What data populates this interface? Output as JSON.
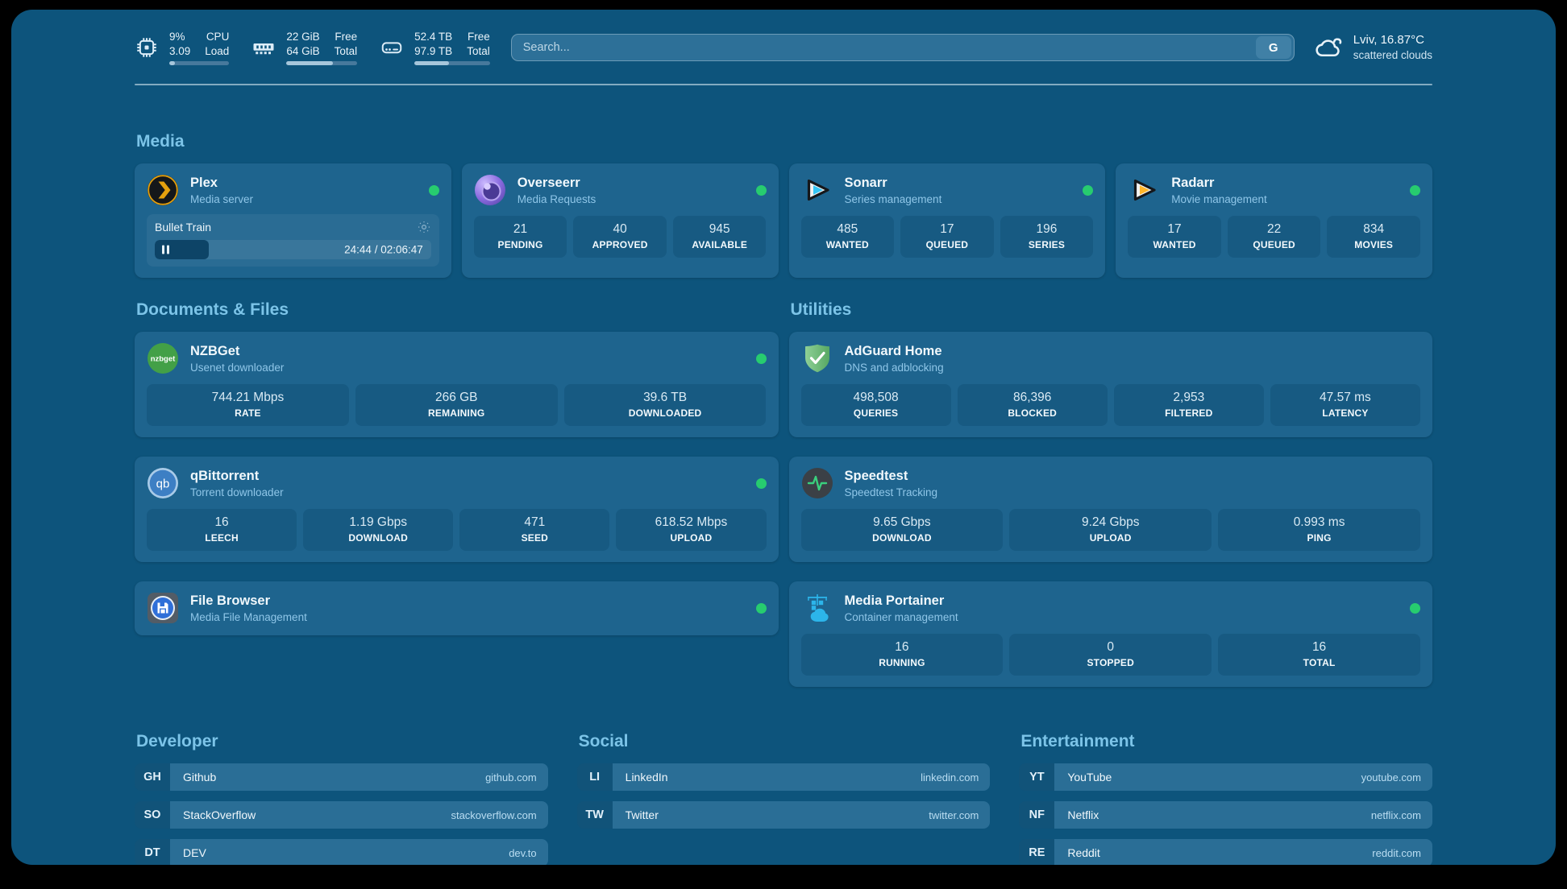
{
  "colors": {
    "background": "#0d547c",
    "card": "#1e648e",
    "accent": "#7cc4e8",
    "status_online": "#27cc6f"
  },
  "header": {
    "system_stats": [
      {
        "name": "cpu",
        "icon": "cpu-icon",
        "values": [
          "9%",
          "3.09"
        ],
        "labels": [
          "CPU",
          "Load"
        ],
        "progress_pct": 9
      },
      {
        "name": "memory",
        "icon": "memory-icon",
        "values": [
          "22 GiB",
          "64 GiB"
        ],
        "labels": [
          "Free",
          "Total"
        ],
        "progress_pct": 66
      },
      {
        "name": "disk",
        "icon": "disk-icon",
        "values": [
          "52.4 TB",
          "97.9 TB"
        ],
        "labels": [
          "Free",
          "Total"
        ],
        "progress_pct": 46
      }
    ],
    "search": {
      "placeholder": "Search...",
      "engine_button": "G"
    },
    "weather": {
      "summary": "Lviv, 16.87°C",
      "condition": "scattered clouds"
    }
  },
  "sections": {
    "media": {
      "title": "Media",
      "apps": [
        {
          "name": "Plex",
          "subtitle": "Media server",
          "icon": "plex",
          "online": true,
          "now_playing": {
            "title": "Bullet Train",
            "time": "24:44 / 02:06:47",
            "progress_pct": 19.5
          }
        },
        {
          "name": "Overseerr",
          "subtitle": "Media Requests",
          "icon": "overseerr",
          "online": true,
          "stats": [
            {
              "value": "21",
              "label": "PENDING"
            },
            {
              "value": "40",
              "label": "APPROVED"
            },
            {
              "value": "945",
              "label": "AVAILABLE"
            }
          ]
        },
        {
          "name": "Sonarr",
          "subtitle": "Series management",
          "icon": "sonarr",
          "online": true,
          "stats": [
            {
              "value": "485",
              "label": "WANTED"
            },
            {
              "value": "17",
              "label": "QUEUED"
            },
            {
              "value": "196",
              "label": "SERIES"
            }
          ]
        },
        {
          "name": "Radarr",
          "subtitle": "Movie management",
          "icon": "radarr",
          "online": true,
          "stats": [
            {
              "value": "17",
              "label": "WANTED"
            },
            {
              "value": "22",
              "label": "QUEUED"
            },
            {
              "value": "834",
              "label": "MOVIES"
            }
          ]
        }
      ]
    },
    "documents": {
      "title": "Documents & Files",
      "apps": [
        {
          "name": "NZBGet",
          "subtitle": "Usenet downloader",
          "icon": "nzbget",
          "online": true,
          "stats": [
            {
              "value": "744.21 Mbps",
              "label": "RATE"
            },
            {
              "value": "266 GB",
              "label": "REMAINING"
            },
            {
              "value": "39.6 TB",
              "label": "DOWNLOADED"
            }
          ]
        },
        {
          "name": "qBittorrent",
          "subtitle": "Torrent downloader",
          "icon": "qbittorrent",
          "online": true,
          "stats": [
            {
              "value": "16",
              "label": "LEECH"
            },
            {
              "value": "1.19 Gbps",
              "label": "DOWNLOAD"
            },
            {
              "value": "471",
              "label": "SEED"
            },
            {
              "value": "618.52 Mbps",
              "label": "UPLOAD"
            }
          ]
        },
        {
          "name": "File Browser",
          "subtitle": "Media File Management",
          "icon": "filebrowser",
          "online": true
        }
      ]
    },
    "utilities": {
      "title": "Utilities",
      "apps": [
        {
          "name": "AdGuard Home",
          "subtitle": "DNS and adblocking",
          "icon": "adguard",
          "online": false,
          "stats": [
            {
              "value": "498,508",
              "label": "QUERIES"
            },
            {
              "value": "86,396",
              "label": "BLOCKED"
            },
            {
              "value": "2,953",
              "label": "FILTERED"
            },
            {
              "value": "47.57 ms",
              "label": "LATENCY"
            }
          ]
        },
        {
          "name": "Speedtest",
          "subtitle": "Speedtest Tracking",
          "icon": "speedtest",
          "online": false,
          "stats": [
            {
              "value": "9.65 Gbps",
              "label": "DOWNLOAD"
            },
            {
              "value": "9.24 Gbps",
              "label": "UPLOAD"
            },
            {
              "value": "0.993 ms",
              "label": "PING"
            }
          ]
        },
        {
          "name": "Media Portainer",
          "subtitle": "Container management",
          "icon": "portainer",
          "online": true,
          "stats": [
            {
              "value": "16",
              "label": "RUNNING"
            },
            {
              "value": "0",
              "label": "STOPPED"
            },
            {
              "value": "16",
              "label": "TOTAL"
            }
          ]
        }
      ]
    }
  },
  "bookmarks": [
    {
      "title": "Developer",
      "links": [
        {
          "abbr": "GH",
          "name": "Github",
          "url": "github.com"
        },
        {
          "abbr": "SO",
          "name": "StackOverflow",
          "url": "stackoverflow.com"
        },
        {
          "abbr": "DT",
          "name": "DEV",
          "url": "dev.to"
        }
      ]
    },
    {
      "title": "Social",
      "links": [
        {
          "abbr": "LI",
          "name": "LinkedIn",
          "url": "linkedin.com"
        },
        {
          "abbr": "TW",
          "name": "Twitter",
          "url": "twitter.com"
        }
      ]
    },
    {
      "title": "Entertainment",
      "links": [
        {
          "abbr": "YT",
          "name": "YouTube",
          "url": "youtube.com"
        },
        {
          "abbr": "NF",
          "name": "Netflix",
          "url": "netflix.com"
        },
        {
          "abbr": "RE",
          "name": "Reddit",
          "url": "reddit.com"
        }
      ]
    }
  ]
}
